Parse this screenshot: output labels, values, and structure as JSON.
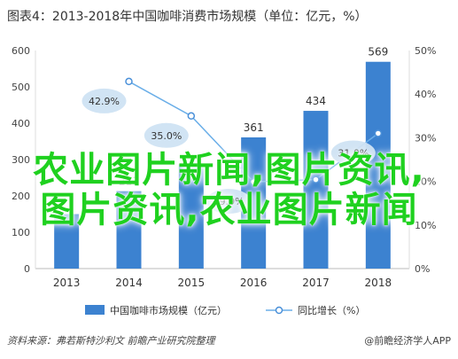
{
  "page": {
    "title": "图表4：2013-2018年中国咖啡消费市场规模（单位：亿元，%）",
    "source": "资料来源：弗若斯特沙利文 前瞻产业研究院整理",
    "logo": "@前瞻经济学人APP",
    "overlay_line1": "农业图片新闻,图片资讯,",
    "overlay_line2": "图片资讯,农业图片新闻"
  },
  "chart_data": {
    "type": "bar",
    "title": "图表4：2013-2018年中国咖啡消费市场规模（单位：亿元，%）",
    "categories": [
      "2013",
      "2014",
      "2015",
      "2016",
      "2017",
      "2018"
    ],
    "series": [
      {
        "name": "中国咖啡市场规模（亿元）",
        "type": "bar",
        "axis": "left",
        "values": [
          150,
          213,
          287,
          361,
          434,
          569
        ],
        "labels": [
          "",
          "213",
          "",
          "361",
          "434",
          "569"
        ],
        "color": "#3c82d0"
      },
      {
        "name": "同比增长（%）",
        "type": "line",
        "axis": "right",
        "values": [
          null,
          42.9,
          35.0,
          19.9,
          20.4,
          31.0
        ],
        "labels": [
          "",
          "42.9%",
          "35.0%",
          "19.9%",
          "",
          "31.0%"
        ],
        "color": "#3c82d0"
      }
    ],
    "y_left": {
      "ylim": [
        0,
        600
      ],
      "ticks": [
        "0",
        "100",
        "200",
        "300",
        "400",
        "500",
        "600"
      ]
    },
    "y_right": {
      "ylim": [
        0,
        50
      ],
      "ticks": [
        "0%",
        "10%",
        "20%",
        "30%",
        "40%",
        "50%"
      ]
    },
    "grid": false,
    "legend": "bottom"
  }
}
